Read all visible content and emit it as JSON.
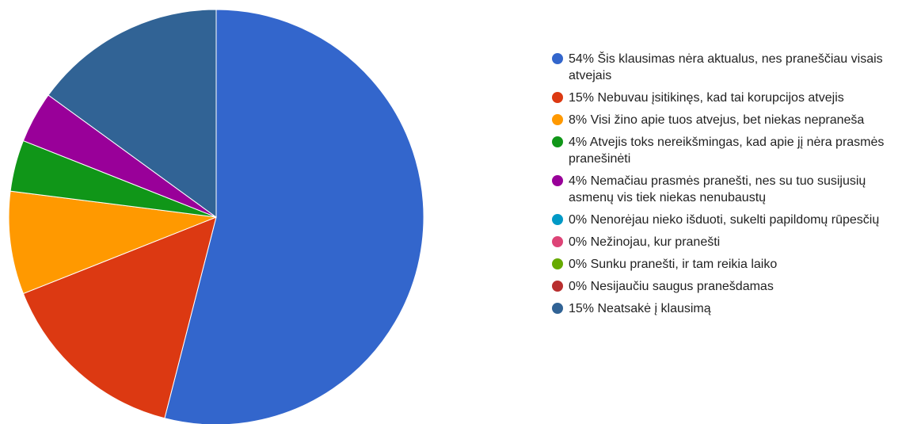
{
  "chart_data": {
    "type": "pie",
    "categories": [
      "Šis klausimas nėra aktualus, nes praneščiau visais atvejais",
      "Nebuvau įsitikinęs, kad tai korupcijos atvejis",
      "Visi žino apie tuos atvejus, bet niekas nepraneša",
      "Atvejis toks nereikšmingas, kad apie jį nėra prasmės pranešinėti",
      "Nemačiau prasmės pranešti, nes su tuo susijusių asmenų vis tiek niekas nenubaustų",
      "Nenorėjau nieko išduoti, sukelti papildomų rūpesčių",
      "Nežinojau, kur pranešti",
      "Sunku pranešti, ir tam reikia laiko",
      "Nesijaučiu saugus pranešdamas",
      "Neatsakė į klausimą"
    ],
    "values": [
      54,
      15,
      8,
      4,
      4,
      0,
      0,
      0,
      0,
      15
    ],
    "value_labels": [
      "54%",
      "15%",
      "8%",
      "4%",
      "4%",
      "0%",
      "0%",
      "0%",
      "0%",
      "15%"
    ],
    "colors": [
      "#3366cc",
      "#dc3912",
      "#ff9900",
      "#109618",
      "#990099",
      "#0099c6",
      "#dd4477",
      "#66aa00",
      "#b82e2e",
      "#316395"
    ]
  }
}
